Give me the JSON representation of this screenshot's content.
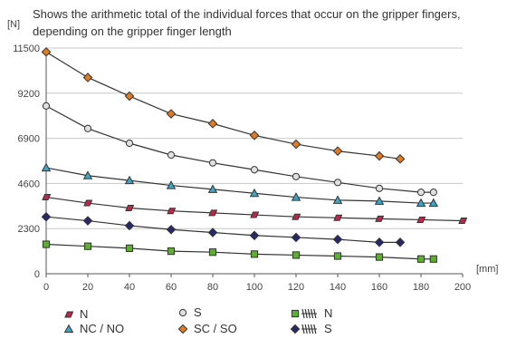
{
  "caption": "Shows the arithmetic total of the individual forces that occur on the gripper fingers, depending on the gripper finger length",
  "chart_data": {
    "type": "line",
    "title": "Shows the arithmetic total of the individual forces that occur on the gripper fingers, depending on the gripper finger length",
    "y_unit": "[N]",
    "x_unit": "[mm]",
    "xlim": [
      0,
      200
    ],
    "ylim": [
      0,
      11500
    ],
    "x_ticks": [
      0,
      20,
      40,
      60,
      80,
      100,
      120,
      140,
      160,
      180,
      200
    ],
    "y_ticks": [
      0,
      2300,
      4600,
      6900,
      9200,
      11500
    ],
    "grid": "horizontal",
    "line_color": "#333333",
    "series": [
      {
        "name": "SC / SO",
        "marker": "diamond",
        "color": "#e07b1f",
        "x": [
          0,
          20,
          40,
          60,
          80,
          100,
          120,
          140,
          160,
          170
        ],
        "y": [
          11300,
          10000,
          9050,
          8150,
          7650,
          7050,
          6600,
          6250,
          6000,
          5850
        ]
      },
      {
        "name": "S",
        "marker": "circle",
        "color": "#e0e0e0",
        "x": [
          0,
          20,
          40,
          60,
          80,
          100,
          120,
          140,
          160,
          180,
          186
        ],
        "y": [
          8550,
          7400,
          6650,
          6050,
          5650,
          5300,
          4950,
          4650,
          4350,
          4150,
          4150
        ]
      },
      {
        "name": "NC / NO",
        "marker": "triangle",
        "color": "#3aa7c9",
        "x": [
          0,
          20,
          40,
          60,
          80,
          100,
          120,
          140,
          160,
          180,
          186
        ],
        "y": [
          5400,
          5000,
          4750,
          4500,
          4300,
          4100,
          3900,
          3750,
          3700,
          3600,
          3600
        ]
      },
      {
        "name": "N",
        "marker": "parallelogram",
        "color": "#c0264a",
        "x": [
          0,
          20,
          40,
          60,
          80,
          100,
          120,
          140,
          160,
          180,
          200
        ],
        "y": [
          3900,
          3600,
          3350,
          3200,
          3100,
          3000,
          2900,
          2850,
          2800,
          2750,
          2700
        ]
      },
      {
        "name": "S",
        "marker": "diamond",
        "color": "#27286b",
        "spring": true,
        "x": [
          0,
          20,
          40,
          60,
          80,
          100,
          120,
          140,
          160,
          170
        ],
        "y": [
          2900,
          2700,
          2450,
          2250,
          2100,
          1950,
          1850,
          1750,
          1600,
          1600
        ]
      },
      {
        "name": "N",
        "marker": "square",
        "color": "#5cb030",
        "spring": true,
        "x": [
          0,
          20,
          40,
          60,
          80,
          100,
          120,
          140,
          160,
          180,
          186
        ],
        "y": [
          1500,
          1400,
          1300,
          1150,
          1100,
          1000,
          950,
          900,
          850,
          750,
          750
        ]
      }
    ]
  },
  "legend": [
    {
      "label": "N",
      "marker": "parallelogram",
      "color": "#c0264a",
      "spring": false
    },
    {
      "label": "S",
      "marker": "circle",
      "color": "#e0e0e0",
      "spring": false
    },
    {
      "label": "N",
      "marker": "square",
      "color": "#5cb030",
      "spring": true
    },
    {
      "label": "NC / NO",
      "marker": "triangle",
      "color": "#3aa7c9",
      "spring": false
    },
    {
      "label": "SC / SO",
      "marker": "diamond",
      "color": "#e07b1f",
      "spring": false
    },
    {
      "label": "S",
      "marker": "diamond",
      "color": "#27286b",
      "spring": true
    }
  ]
}
